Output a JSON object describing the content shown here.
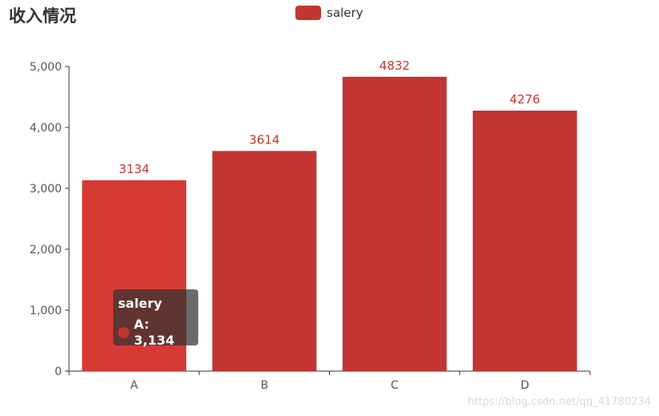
{
  "chart_data": {
    "type": "bar",
    "title": "收入情况",
    "categories": [
      "A",
      "B",
      "C",
      "D"
    ],
    "series": [
      {
        "name": "salery",
        "values": [
          3134,
          3614,
          4832,
          4276
        ]
      }
    ],
    "data_labels": [
      "3134",
      "3614",
      "4832",
      "4276"
    ],
    "ylim": [
      0,
      5000
    ],
    "y_ticks": [
      0,
      1000,
      2000,
      3000,
      4000,
      5000
    ],
    "y_tick_labels": [
      "0",
      "1,000",
      "2,000",
      "3,000",
      "4,000",
      "5,000"
    ],
    "grid": false,
    "legend_position": "top-center",
    "highlighted_category": "A"
  },
  "colors": {
    "bar": "#c23531",
    "bar_highlight": "#d63a34",
    "axis": "#333333",
    "label": "#c23531"
  },
  "tooltip": {
    "series_name": "salery",
    "text": "A: 3,134"
  },
  "watermark": "https://blog.csdn.net/qq_41780234"
}
